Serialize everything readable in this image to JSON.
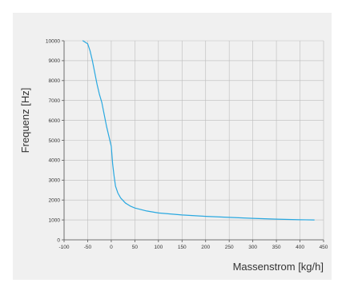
{
  "chart_data": {
    "type": "line",
    "title": "",
    "xlabel": "Massenstrom [kg/h]",
    "ylabel": "Frequenz [Hz]",
    "xlim": [
      -100,
      450
    ],
    "ylim": [
      0,
      10000
    ],
    "x_ticks": [
      -100,
      -50,
      0,
      50,
      100,
      150,
      200,
      250,
      300,
      350,
      400,
      450
    ],
    "y_ticks": [
      0,
      1000,
      2000,
      3000,
      4000,
      5000,
      6000,
      7000,
      8000,
      9000,
      10000
    ],
    "grid": true,
    "series": [
      {
        "color": "#29a8e0",
        "points": [
          [
            -60,
            10000
          ],
          [
            -50,
            9850
          ],
          [
            -45,
            9500
          ],
          [
            -40,
            9000
          ],
          [
            -35,
            8400
          ],
          [
            -30,
            7800
          ],
          [
            -25,
            7300
          ],
          [
            -20,
            6900
          ],
          [
            -15,
            6300
          ],
          [
            -10,
            5700
          ],
          [
            -5,
            5200
          ],
          [
            0,
            4700
          ],
          [
            3,
            3800
          ],
          [
            6,
            3200
          ],
          [
            9,
            2700
          ],
          [
            14,
            2350
          ],
          [
            20,
            2100
          ],
          [
            30,
            1850
          ],
          [
            40,
            1700
          ],
          [
            50,
            1600
          ],
          [
            75,
            1450
          ],
          [
            100,
            1350
          ],
          [
            150,
            1250
          ],
          [
            200,
            1180
          ],
          [
            250,
            1130
          ],
          [
            300,
            1080
          ],
          [
            350,
            1040
          ],
          [
            400,
            1010
          ],
          [
            430,
            1000
          ]
        ]
      }
    ]
  }
}
